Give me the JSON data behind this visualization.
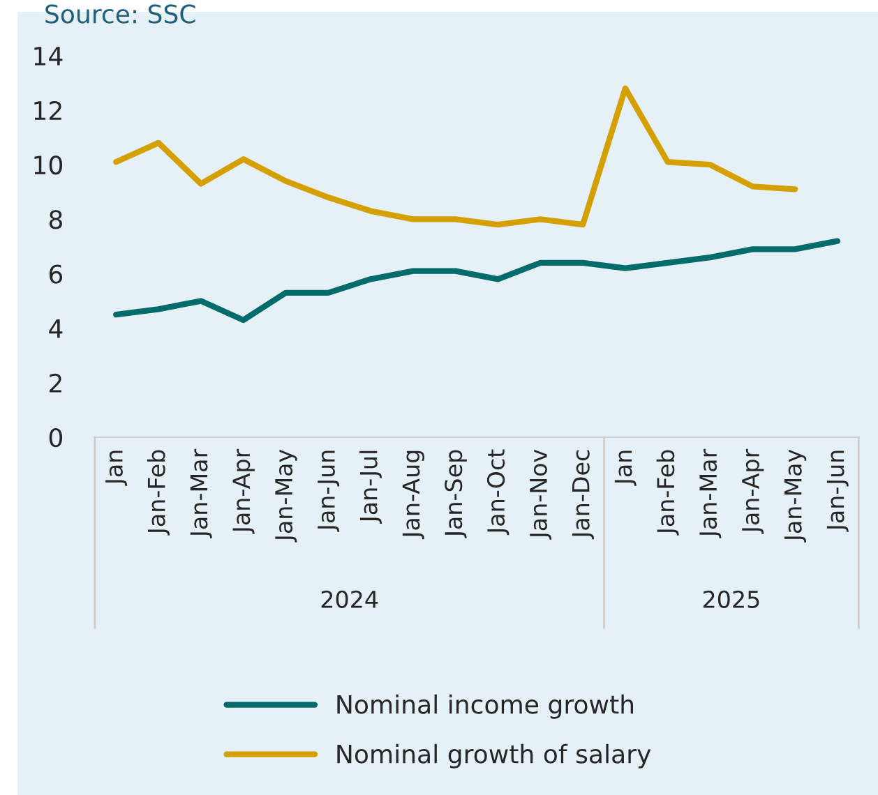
{
  "chart_data": {
    "type": "line",
    "categories": [
      "Jan",
      "Jan-Feb",
      "Jan-Mar",
      "Jan-Apr",
      "Jan-May",
      "Jan-Jun",
      "Jan-Jul",
      "Jan-Aug",
      "Jan-Sep",
      "Jan-Oct",
      "Jan-Nov",
      "Jan-Dec",
      "Jan",
      "Jan-Feb",
      "Jan-Mar",
      "Jan-Apr",
      "Jan-May",
      "Jan-Jun"
    ],
    "series": [
      {
        "name": "Nominal income growth",
        "color": "#006b6b",
        "values": [
          4.5,
          4.7,
          5.0,
          4.3,
          5.3,
          5.3,
          5.8,
          6.1,
          6.1,
          5.8,
          6.4,
          6.4,
          6.2,
          6.4,
          6.6,
          6.9,
          6.9,
          7.2
        ]
      },
      {
        "name": "Nominal growth of salary",
        "color": "#d4a000",
        "values": [
          10.1,
          10.8,
          9.3,
          10.2,
          9.4,
          8.8,
          8.3,
          8.0,
          8.0,
          7.8,
          8.0,
          7.8,
          12.8,
          10.1,
          10.0,
          9.2,
          9.1,
          null
        ]
      }
    ],
    "ylim": [
      0,
      14
    ],
    "yticks": [
      0,
      2,
      4,
      6,
      8,
      10,
      12,
      14
    ],
    "grid": false,
    "legend": "bottom",
    "marker": "none",
    "line_style": "solid",
    "annotations": [
      "Source: SSC",
      "2024",
      "2025"
    ]
  }
}
